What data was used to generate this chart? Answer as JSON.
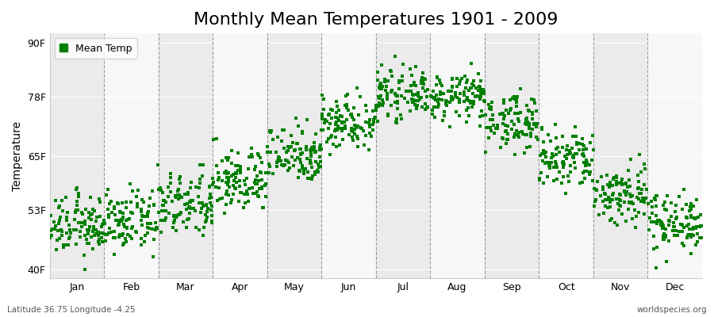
{
  "title": "Monthly Mean Temperatures 1901 - 2009",
  "ylabel": "Temperature",
  "xlabel_months": [
    "Jan",
    "Feb",
    "Mar",
    "Apr",
    "May",
    "Jun",
    "Jul",
    "Aug",
    "Sep",
    "Oct",
    "Nov",
    "Dec"
  ],
  "yticks": [
    40,
    53,
    65,
    78,
    90
  ],
  "ytick_labels": [
    "40F",
    "53F",
    "65F",
    "78F",
    "90F"
  ],
  "ylim": [
    38,
    92
  ],
  "marker_color": "#008000",
  "background_color": "#ffffff",
  "plot_bg_color": "#ffffff",
  "band_color_even": "#ebebeb",
  "band_color_odd": "#f7f7f7",
  "title_fontsize": 16,
  "label_fontsize": 10,
  "tick_fontsize": 9,
  "bottom_left_text": "Latitude 36.75 Longitude -4.25",
  "bottom_right_text": "worldspecies.org",
  "legend_label": "Mean Temp",
  "monthly_means_F": [
    49.5,
    50.5,
    54.0,
    59.5,
    65.5,
    72.5,
    78.5,
    78.0,
    72.5,
    64.0,
    56.5,
    50.5
  ],
  "monthly_stds_F": [
    3.2,
    3.2,
    3.5,
    3.5,
    3.2,
    3.0,
    2.5,
    2.5,
    3.0,
    3.5,
    3.5,
    3.2
  ],
  "n_years": 109
}
